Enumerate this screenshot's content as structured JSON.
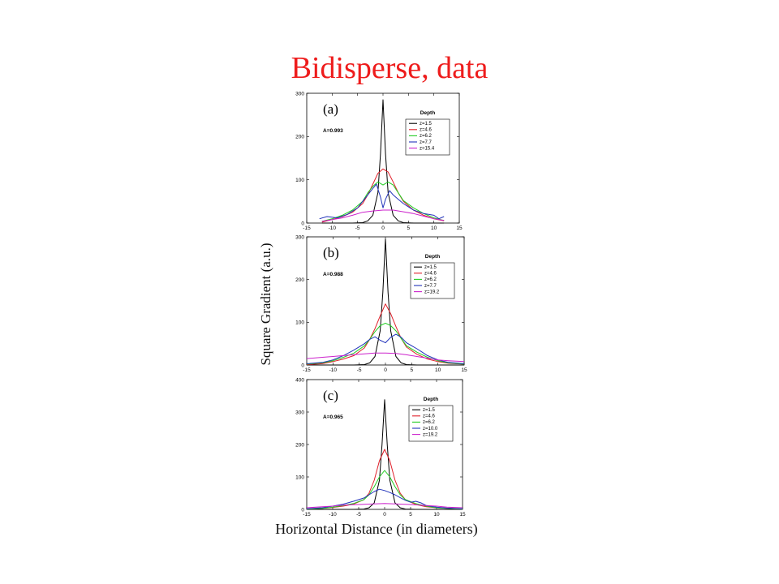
{
  "title": "Bidisperse, data",
  "ylabel": "Square Gradient (a.u.)",
  "xlabel": "Horizontal Distance (in diameters)",
  "colors": {
    "title": "#ee1c1c",
    "series": [
      "#000000",
      "#e0202a",
      "#22cc22",
      "#2233bb",
      "#cc22cc"
    ]
  },
  "chart_data": [
    {
      "type": "line",
      "panel_label": "(a)",
      "annotation": "A=0.993",
      "legend_title": "Depth",
      "legend_position": "top-right",
      "xlim": [
        -15,
        15
      ],
      "ylim": [
        0,
        300
      ],
      "xticks": [
        -15,
        -10,
        -5,
        0,
        5,
        10,
        15
      ],
      "yticks": [
        0,
        100,
        200,
        300
      ],
      "series": [
        {
          "name": "z=1.5",
          "color": "#000000",
          "points": [
            [
              -12,
              0
            ],
            [
              -6,
              0
            ],
            [
              -4,
              1
            ],
            [
              -3,
              5
            ],
            [
              -2,
              18
            ],
            [
              -1,
              70
            ],
            [
              -0.5,
              160
            ],
            [
              0,
              285
            ],
            [
              0.5,
              160
            ],
            [
              1,
              70
            ],
            [
              2,
              18
            ],
            [
              3,
              5
            ],
            [
              4,
              1
            ],
            [
              6,
              0
            ],
            [
              12,
              0
            ]
          ]
        },
        {
          "name": "z=4.6",
          "color": "#e0202a",
          "points": [
            [
              -12,
              2
            ],
            [
              -10,
              8
            ],
            [
              -8,
              15
            ],
            [
              -6,
              25
            ],
            [
              -4,
              45
            ],
            [
              -3,
              65
            ],
            [
              -2,
              90
            ],
            [
              -1,
              115
            ],
            [
              0,
              125
            ],
            [
              1,
              118
            ],
            [
              2,
              95
            ],
            [
              3,
              70
            ],
            [
              4,
              50
            ],
            [
              6,
              30
            ],
            [
              8,
              18
            ],
            [
              10,
              10
            ],
            [
              12,
              5
            ]
          ]
        },
        {
          "name": "z=6.2",
          "color": "#22cc22",
          "points": [
            [
              -12,
              4
            ],
            [
              -10,
              10
            ],
            [
              -8,
              18
            ],
            [
              -6,
              30
            ],
            [
              -4,
              50
            ],
            [
              -3,
              70
            ],
            [
              -2,
              85
            ],
            [
              -1,
              95
            ],
            [
              0,
              88
            ],
            [
              1,
              95
            ],
            [
              2,
              88
            ],
            [
              3,
              70
            ],
            [
              4,
              52
            ],
            [
              6,
              35
            ],
            [
              8,
              22
            ],
            [
              10,
              12
            ],
            [
              12,
              6
            ]
          ]
        },
        {
          "name": "z=7.7",
          "color": "#2233bb",
          "points": [
            [
              -12.5,
              10
            ],
            [
              -11,
              15
            ],
            [
              -9,
              12
            ],
            [
              -7,
              20
            ],
            [
              -5,
              35
            ],
            [
              -4,
              50
            ],
            [
              -3,
              65
            ],
            [
              -2,
              80
            ],
            [
              -1.3,
              90
            ],
            [
              -0.5,
              60
            ],
            [
              0,
              35
            ],
            [
              0.5,
              55
            ],
            [
              1.3,
              75
            ],
            [
              2,
              65
            ],
            [
              3,
              55
            ],
            [
              4,
              45
            ],
            [
              6,
              30
            ],
            [
              8,
              22
            ],
            [
              10,
              18
            ],
            [
              11,
              10
            ],
            [
              12,
              15
            ]
          ]
        },
        {
          "name": "z=15.4",
          "color": "#cc22cc",
          "points": [
            [
              -12,
              4
            ],
            [
              -10,
              8
            ],
            [
              -8,
              12
            ],
            [
              -6,
              18
            ],
            [
              -4,
              25
            ],
            [
              -2,
              28
            ],
            [
              0,
              30
            ],
            [
              2,
              30
            ],
            [
              4,
              26
            ],
            [
              6,
              22
            ],
            [
              8,
              16
            ],
            [
              10,
              10
            ],
            [
              12,
              6
            ]
          ]
        }
      ]
    },
    {
      "type": "line",
      "panel_label": "(b)",
      "annotation": "A=0.988",
      "legend_title": "Depth",
      "legend_position": "top-right",
      "xlim": [
        -15,
        15
      ],
      "ylim": [
        0,
        300
      ],
      "xticks": [
        -15,
        -10,
        -5,
        0,
        5,
        10,
        15
      ],
      "yticks": [
        0,
        100,
        200,
        300
      ],
      "series": [
        {
          "name": "z=1.5",
          "color": "#000000",
          "points": [
            [
              -15,
              0
            ],
            [
              -6,
              0
            ],
            [
              -4,
              1
            ],
            [
              -3,
              5
            ],
            [
              -2,
              20
            ],
            [
              -1,
              80
            ],
            [
              -0.5,
              170
            ],
            [
              0,
              295
            ],
            [
              0.5,
              170
            ],
            [
              1,
              80
            ],
            [
              2,
              20
            ],
            [
              3,
              5
            ],
            [
              4,
              1
            ],
            [
              6,
              0
            ],
            [
              15,
              0
            ]
          ]
        },
        {
          "name": "z=4.6",
          "color": "#e0202a",
          "points": [
            [
              -15,
              1
            ],
            [
              -12,
              3
            ],
            [
              -10,
              8
            ],
            [
              -8,
              14
            ],
            [
              -6,
              22
            ],
            [
              -4,
              40
            ],
            [
              -3,
              60
            ],
            [
              -2,
              85
            ],
            [
              -1,
              115
            ],
            [
              0,
              143
            ],
            [
              1,
              120
            ],
            [
              2,
              90
            ],
            [
              3,
              62
            ],
            [
              4,
              42
            ],
            [
              6,
              25
            ],
            [
              8,
              14
            ],
            [
              10,
              8
            ],
            [
              12,
              4
            ],
            [
              15,
              2
            ]
          ]
        },
        {
          "name": "z=6.2",
          "color": "#22cc22",
          "points": [
            [
              -15,
              2
            ],
            [
              -12,
              5
            ],
            [
              -10,
              10
            ],
            [
              -8,
              18
            ],
            [
              -6,
              28
            ],
            [
              -4,
              45
            ],
            [
              -3,
              60
            ],
            [
              -2,
              78
            ],
            [
              -1,
              92
            ],
            [
              0,
              98
            ],
            [
              1,
              92
            ],
            [
              2,
              80
            ],
            [
              3,
              62
            ],
            [
              4,
              45
            ],
            [
              6,
              30
            ],
            [
              8,
              18
            ],
            [
              10,
              10
            ],
            [
              12,
              5
            ],
            [
              15,
              2
            ]
          ]
        },
        {
          "name": "z=7.7",
          "color": "#2233bb",
          "points": [
            [
              -15,
              3
            ],
            [
              -12,
              6
            ],
            [
              -10,
              12
            ],
            [
              -8,
              22
            ],
            [
              -6,
              35
            ],
            [
              -4,
              50
            ],
            [
              -3,
              60
            ],
            [
              -2,
              66
            ],
            [
              -1,
              58
            ],
            [
              0,
              52
            ],
            [
              1,
              65
            ],
            [
              2,
              72
            ],
            [
              3,
              65
            ],
            [
              4,
              52
            ],
            [
              6,
              38
            ],
            [
              7,
              30
            ],
            [
              8,
              22
            ],
            [
              10,
              12
            ],
            [
              12,
              6
            ],
            [
              15,
              3
            ]
          ]
        },
        {
          "name": "z=19.2",
          "color": "#cc22cc",
          "points": [
            [
              -15,
              15
            ],
            [
              -12,
              18
            ],
            [
              -10,
              20
            ],
            [
              -8,
              22
            ],
            [
              -5,
              25
            ],
            [
              -2,
              28
            ],
            [
              0,
              28
            ],
            [
              2,
              27
            ],
            [
              4,
              24
            ],
            [
              6,
              20
            ],
            [
              8,
              16
            ],
            [
              10,
              12
            ],
            [
              12,
              10
            ],
            [
              15,
              8
            ]
          ]
        }
      ]
    },
    {
      "type": "line",
      "panel_label": "(c)",
      "annotation": "A=0.965",
      "legend_title": "Depth",
      "legend_position": "top-right",
      "xlim": [
        -15,
        15
      ],
      "ylim": [
        0,
        400
      ],
      "xticks": [
        -15,
        -10,
        -5,
        0,
        5,
        10,
        15
      ],
      "yticks": [
        0,
        100,
        200,
        300,
        400
      ],
      "series": [
        {
          "name": "z=1.5",
          "color": "#000000",
          "points": [
            [
              -15,
              0
            ],
            [
              -6,
              0
            ],
            [
              -4,
              1
            ],
            [
              -3,
              5
            ],
            [
              -2,
              20
            ],
            [
              -1,
              90
            ],
            [
              -0.5,
              200
            ],
            [
              0,
              338
            ],
            [
              0.5,
              200
            ],
            [
              1,
              90
            ],
            [
              2,
              20
            ],
            [
              3,
              5
            ],
            [
              4,
              1
            ],
            [
              6,
              0
            ],
            [
              15,
              0
            ]
          ]
        },
        {
          "name": "z=4.6",
          "color": "#e0202a",
          "points": [
            [
              -15,
              1
            ],
            [
              -12,
              3
            ],
            [
              -10,
              6
            ],
            [
              -8,
              10
            ],
            [
              -6,
              16
            ],
            [
              -4,
              30
            ],
            [
              -3,
              50
            ],
            [
              -2,
              90
            ],
            [
              -1,
              150
            ],
            [
              0,
              185
            ],
            [
              1,
              150
            ],
            [
              2,
              90
            ],
            [
              3,
              50
            ],
            [
              4,
              30
            ],
            [
              6,
              15
            ],
            [
              8,
              8
            ],
            [
              10,
              5
            ],
            [
              12,
              3
            ],
            [
              15,
              1
            ]
          ]
        },
        {
          "name": "z=6.2",
          "color": "#22cc22",
          "points": [
            [
              -15,
              1
            ],
            [
              -12,
              3
            ],
            [
              -10,
              7
            ],
            [
              -8,
              12
            ],
            [
              -6,
              18
            ],
            [
              -4,
              30
            ],
            [
              -3,
              45
            ],
            [
              -2,
              70
            ],
            [
              -1,
              100
            ],
            [
              0,
              120
            ],
            [
              1,
              100
            ],
            [
              2,
              70
            ],
            [
              3,
              45
            ],
            [
              4,
              30
            ],
            [
              6,
              18
            ],
            [
              8,
              10
            ],
            [
              10,
              5
            ],
            [
              12,
              3
            ],
            [
              15,
              1
            ]
          ]
        },
        {
          "name": "z=10.0",
          "color": "#2233bb",
          "points": [
            [
              -15,
              2
            ],
            [
              -12,
              5
            ],
            [
              -10,
              10
            ],
            [
              -8,
              16
            ],
            [
              -6,
              25
            ],
            [
              -4,
              35
            ],
            [
              -3,
              45
            ],
            [
              -2,
              55
            ],
            [
              -1,
              62
            ],
            [
              0,
              58
            ],
            [
              1,
              52
            ],
            [
              2,
              45
            ],
            [
              3,
              36
            ],
            [
              4,
              28
            ],
            [
              5,
              22
            ],
            [
              6,
              25
            ],
            [
              7,
              20
            ],
            [
              8,
              12
            ],
            [
              10,
              7
            ],
            [
              12,
              4
            ],
            [
              15,
              2
            ]
          ]
        },
        {
          "name": "z=19.2",
          "color": "#cc22cc",
          "points": [
            [
              -15,
              5
            ],
            [
              -12,
              8
            ],
            [
              -10,
              10
            ],
            [
              -8,
              13
            ],
            [
              -5,
              15
            ],
            [
              -2,
              17
            ],
            [
              0,
              18
            ],
            [
              2,
              17
            ],
            [
              5,
              15
            ],
            [
              8,
              12
            ],
            [
              10,
              10
            ],
            [
              12,
              7
            ],
            [
              15,
              5
            ]
          ]
        }
      ]
    }
  ]
}
